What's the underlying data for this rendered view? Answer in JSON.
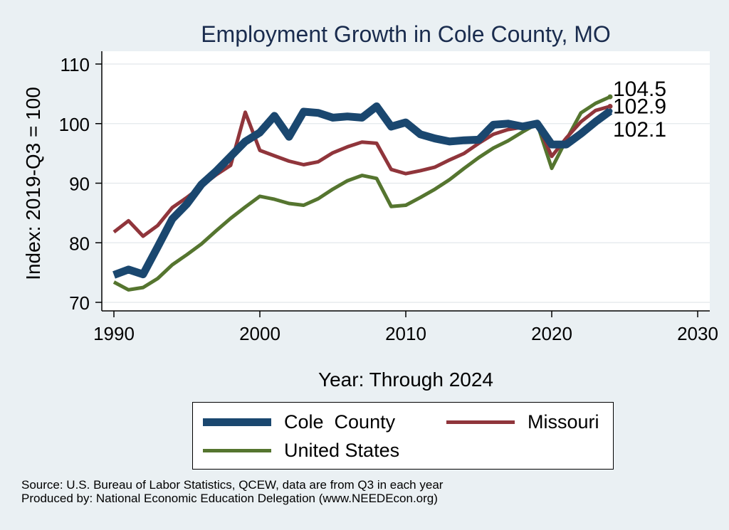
{
  "chart_data": {
    "type": "line",
    "title": "Employment Growth in Cole County, MO",
    "xlabel": "Year: Through 2024",
    "ylabel": "Index: 2019-Q3 = 100",
    "xlim": [
      1990,
      2030
    ],
    "ylim": [
      70,
      110
    ],
    "x_ticks": [
      "1990",
      "2000",
      "2010",
      "2020",
      "2030"
    ],
    "y_ticks": [
      "70",
      "80",
      "90",
      "100",
      "110"
    ],
    "grid": true,
    "legend_position": "bottom",
    "x": [
      1990,
      1991,
      1992,
      1993,
      1994,
      1995,
      1996,
      1997,
      1998,
      1999,
      2000,
      2001,
      2002,
      2003,
      2004,
      2005,
      2006,
      2007,
      2008,
      2009,
      2010,
      2011,
      2012,
      2013,
      2014,
      2015,
      2016,
      2017,
      2018,
      2019,
      2020,
      2021,
      2022,
      2023,
      2024
    ],
    "series": [
      {
        "name": "Cole  County",
        "color": "#1a476f",
        "values": [
          74.6,
          75.5,
          74.7,
          79.3,
          84.0,
          86.5,
          89.8,
          92.0,
          94.5,
          97.0,
          98.5,
          101.3,
          97.8,
          102.0,
          101.8,
          101.0,
          101.2,
          101.0,
          102.9,
          99.5,
          100.2,
          98.2,
          97.5,
          97.0,
          97.2,
          97.3,
          99.8,
          100.0,
          99.5,
          100.0,
          96.5,
          96.5,
          98.3,
          100.3,
          102.1
        ]
      },
      {
        "name": "Missouri",
        "color": "#90353b",
        "values": [
          81.8,
          83.7,
          81.1,
          82.9,
          85.9,
          87.6,
          89.5,
          91.4,
          93.0,
          101.9,
          95.5,
          94.6,
          93.7,
          93.1,
          93.6,
          95.1,
          96.1,
          96.9,
          96.7,
          92.3,
          91.6,
          92.1,
          92.7,
          93.9,
          95.0,
          96.7,
          98.2,
          99.0,
          99.4,
          100.0,
          94.5,
          97.6,
          100.3,
          102.2,
          102.9
        ]
      },
      {
        "name": "United States",
        "color": "#55752f",
        "values": [
          73.4,
          72.1,
          72.5,
          74.0,
          76.3,
          78.0,
          79.8,
          82.0,
          84.1,
          86.0,
          87.8,
          87.3,
          86.6,
          86.3,
          87.4,
          89.0,
          90.4,
          91.3,
          90.8,
          86.1,
          86.3,
          87.6,
          89.0,
          90.6,
          92.5,
          94.3,
          95.9,
          97.1,
          98.6,
          100.0,
          92.5,
          97.3,
          101.8,
          103.4,
          104.5
        ]
      }
    ],
    "end_labels": [
      "104.5",
      "102.9",
      "102.1"
    ]
  },
  "source_lines": [
    "Source: U.S. Bureau of Labor Statistics, QCEW, data are from Q3 in each year",
    "Produced by: National Economic Education Delegation (www.NEEDEcon.org)"
  ]
}
